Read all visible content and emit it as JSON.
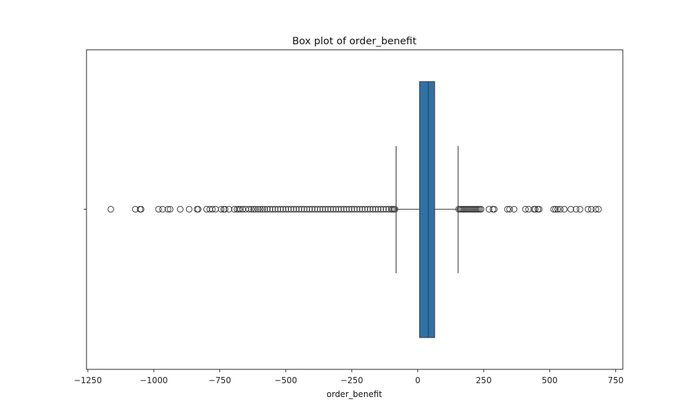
{
  "chart_data": {
    "type": "box",
    "title": "Box plot of order_benefit",
    "xlabel": "order_benefit",
    "ylabel": "",
    "xlim": [
      -1255,
      777
    ],
    "x_ticks": [
      -1250,
      -1000,
      -750,
      -500,
      -250,
      0,
      250,
      500,
      750
    ],
    "x_tick_labels": [
      "−1250",
      "−1000",
      "−750",
      "−500",
      "−250",
      "0",
      "250",
      "500",
      "750"
    ],
    "orientation": "horizontal",
    "grid": false,
    "legend": "none",
    "box": {
      "whisker_low": -82,
      "q1": 7,
      "median": 40,
      "q3": 64,
      "whisker_high": 153
    },
    "outliers": [
      -1163,
      -1070,
      -1052,
      -1048,
      -982,
      -967,
      -946,
      -938,
      -900,
      -866,
      -836,
      -832,
      -800,
      -788,
      -778,
      -766,
      -745,
      -735,
      -730,
      -715,
      -695,
      -685,
      -678,
      -672,
      -663,
      -652,
      -640,
      -630,
      -622,
      -615,
      -605,
      -596,
      -588,
      -580,
      -570,
      -560,
      -550,
      -540,
      -530,
      -520,
      -510,
      -500,
      -490,
      -480,
      -470,
      -460,
      -450,
      -440,
      -430,
      -420,
      -410,
      -400,
      -390,
      -380,
      -370,
      -360,
      -350,
      -340,
      -330,
      -320,
      -310,
      -300,
      -290,
      -280,
      -270,
      -260,
      -250,
      -240,
      -230,
      -220,
      -210,
      -200,
      -190,
      -180,
      -170,
      -160,
      -150,
      -140,
      -130,
      -120,
      -110,
      -100,
      -95,
      -90,
      -86,
      155,
      160,
      165,
      170,
      175,
      180,
      185,
      190,
      195,
      200,
      205,
      210,
      215,
      220,
      225,
      230,
      235,
      240,
      270,
      285,
      290,
      340,
      348,
      365,
      408,
      420,
      440,
      445,
      455,
      460,
      515,
      522,
      530,
      540,
      555,
      580,
      600,
      615,
      645,
      658,
      675,
      685
    ],
    "colors": {
      "box_fill": "#2f72a8",
      "box_edge": "#3a3a3a",
      "outlier_edge": "#3a3a3a"
    }
  }
}
